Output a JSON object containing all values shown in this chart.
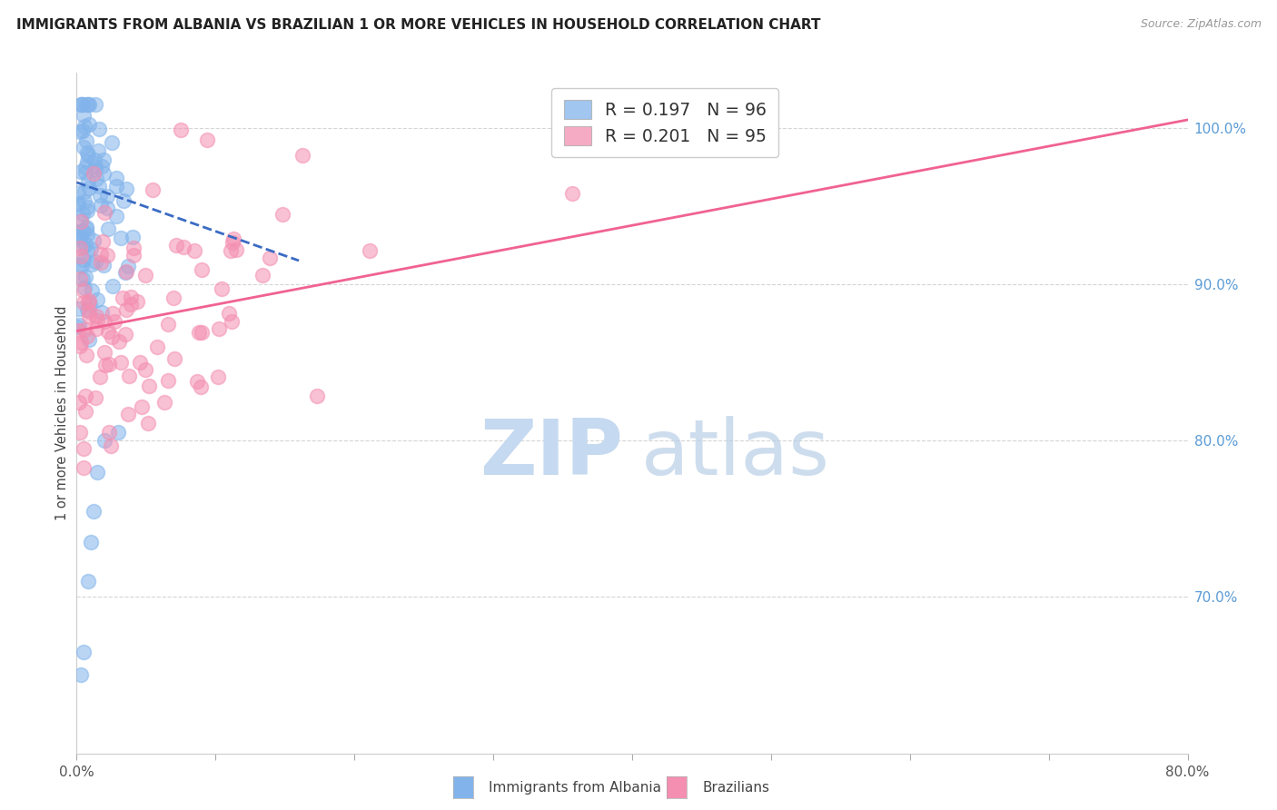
{
  "title": "IMMIGRANTS FROM ALBANIA VS BRAZILIAN 1 OR MORE VEHICLES IN HOUSEHOLD CORRELATION CHART",
  "source": "Source: ZipAtlas.com",
  "ylabel": "1 or more Vehicles in Household",
  "xlim": [
    0.0,
    80.0
  ],
  "ylim": [
    60.0,
    103.5
  ],
  "x_ticks": [
    0,
    10,
    20,
    30,
    40,
    50,
    60,
    70,
    80
  ],
  "x_tick_labels": [
    "0.0%",
    "",
    "",
    "",
    "",
    "",
    "",
    "",
    "80.0%"
  ],
  "y_ticks_right": [
    70,
    80,
    90,
    100
  ],
  "y_tick_labels_right": [
    "70.0%",
    "80.0%",
    "90.0%",
    "100.0%"
  ],
  "albania_color": "#82b4eb",
  "brazil_color": "#f48fb1",
  "albania_line_color": "#3a6bc4",
  "brazil_line_color": "#f06292",
  "legend_line1": "R = 0.197   N = 96",
  "legend_line2": "R = 0.201   N = 95",
  "legend_label1": "Immigrants from Albania",
  "legend_label2": "Brazilians",
  "watermark_zip_color": "#c5d9f0",
  "watermark_atlas_color": "#b8cfe8",
  "grid_color": "#d5d5d5",
  "title_color": "#222222",
  "source_color": "#999999",
  "axis_label_color": "#444444",
  "right_tick_color": "#5b9bd5",
  "albania_N": 96,
  "brazil_N": 95,
  "albania_R": 0.197,
  "brazil_R": 0.201,
  "albania_line_x0": 0.0,
  "albania_line_y0": 96.5,
  "albania_line_x1": 16.0,
  "albania_line_y1": 91.5,
  "brazil_line_x0": 0.0,
  "brazil_line_y0": 87.0,
  "brazil_line_x1": 80.0,
  "brazil_line_y1": 100.5
}
